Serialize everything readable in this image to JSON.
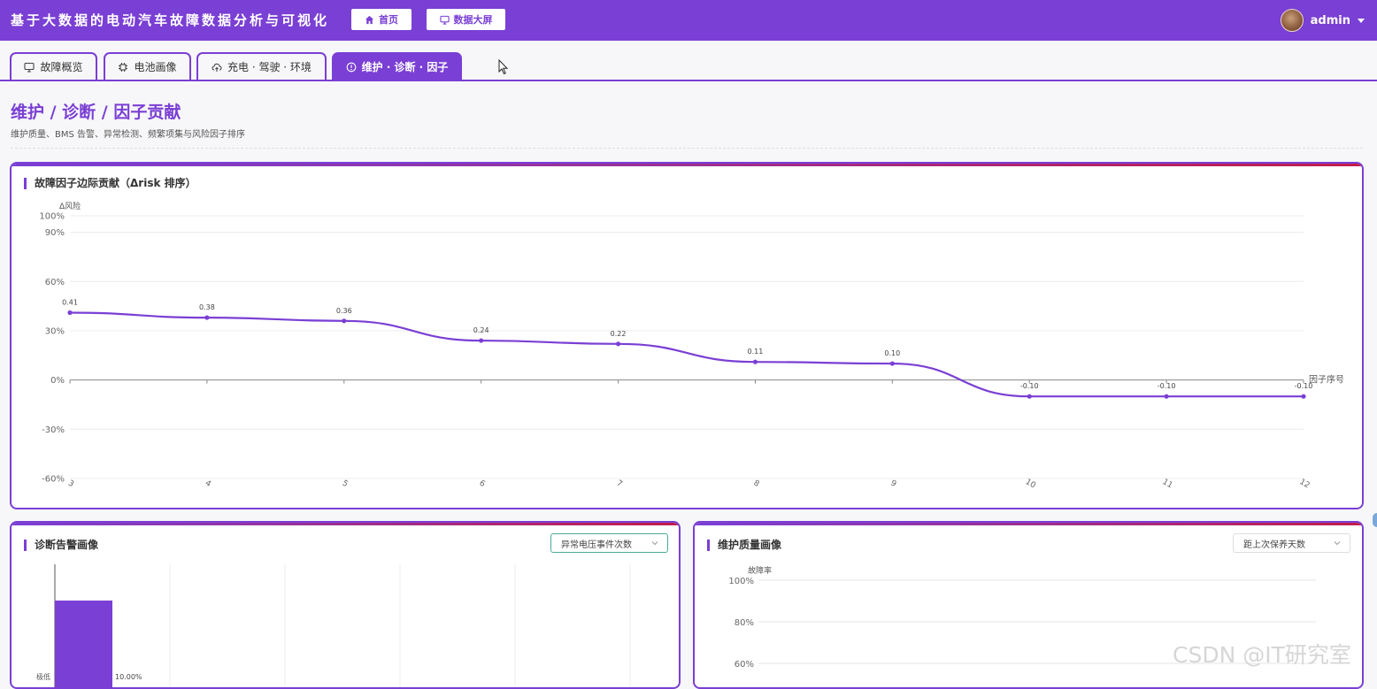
{
  "app": {
    "title": "基于大数据的电动汽车故障数据分析与可视化",
    "nav_home": "首页",
    "nav_dashboard": "数据大屏",
    "username": "admin"
  },
  "tabs": [
    {
      "label": "故障概览",
      "icon": "monitor-icon"
    },
    {
      "label": "电池画像",
      "icon": "chip-icon"
    },
    {
      "label": "充电 · 驾驶 · 环境",
      "icon": "cloud-upload-icon"
    },
    {
      "label": "维护 · 诊断 · 因子",
      "icon": "info-circle-icon"
    }
  ],
  "page": {
    "title": "维护 / 诊断 / 因子贡献",
    "subtitle": "维护质量、BMS 告警、异常检测、频繁项集与风险因子排序"
  },
  "factor_card": {
    "title": "故障因子边际贡献（Δrisk 排序）"
  },
  "diag_card": {
    "title": "诊断告警画像",
    "select_value": "异常电压事件次数",
    "y_label_partial": "极低",
    "bar_value_label": "10.00%"
  },
  "maint_card": {
    "title": "维护质量画像",
    "select_value": "距上次保养天数",
    "y_axis_label": "故障率",
    "y_ticks": [
      "100%",
      "80%",
      "60%"
    ]
  },
  "watermark": "CSDN @IT研究室",
  "colors": {
    "primary": "#7a3fd4",
    "accent_red": "#c21d4a",
    "select_border_teal": "#4aa99a"
  },
  "chart_data": [
    {
      "type": "line",
      "title": "故障因子边际贡献（Δrisk 排序）",
      "xlabel": "因子序号",
      "ylabel": "Δ风险",
      "x": [
        3,
        4,
        5,
        6,
        7,
        8,
        9,
        10,
        11,
        12
      ],
      "values": [
        0.41,
        0.38,
        0.36,
        0.24,
        0.22,
        0.11,
        0.1,
        -0.1,
        -0.1,
        -0.1
      ],
      "value_labels": [
        "0.41",
        "0.38",
        "0.36",
        "0.24",
        "0.22",
        "0.11",
        "0.10",
        "-0.10",
        "-0.10",
        "-0.10"
      ],
      "y_ticks": [
        "100%",
        "90%",
        "60%",
        "30%",
        "0%",
        "-30%",
        "-60%"
      ],
      "y_tick_values": [
        1.0,
        0.9,
        0.6,
        0.3,
        0.0,
        -0.3,
        -0.6
      ],
      "ylim": [
        -0.6,
        1.0
      ],
      "smooth": true,
      "grid": true
    },
    {
      "type": "bar",
      "title": "诊断告警画像",
      "categories": [
        "极低"
      ],
      "values": [
        0.1
      ],
      "value_labels": [
        "10.00%"
      ],
      "orientation": "horizontal"
    }
  ]
}
